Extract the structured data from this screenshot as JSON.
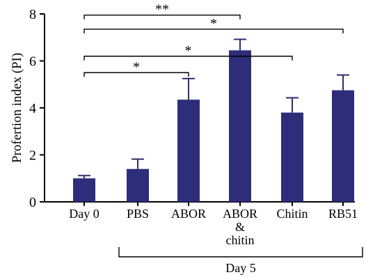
{
  "chart_data": {
    "type": "bar",
    "ylabel": "Profertion index (PI)",
    "ylim": [
      0,
      8
    ],
    "yticks": [
      0,
      2,
      4,
      6,
      8
    ],
    "bar_color": "#2e2d7a",
    "categories": [
      {
        "lines": [
          "Day 0"
        ]
      },
      {
        "lines": [
          "PBS"
        ]
      },
      {
        "lines": [
          "ABOR"
        ]
      },
      {
        "lines": [
          "ABOR",
          "&",
          "chitin"
        ]
      },
      {
        "lines": [
          "Chitin"
        ]
      },
      {
        "lines": [
          "RB51"
        ]
      }
    ],
    "values": [
      1.0,
      1.4,
      4.35,
      6.45,
      3.8,
      4.75
    ],
    "errors": [
      0.12,
      0.42,
      0.9,
      0.47,
      0.63,
      0.65
    ],
    "significance": [
      {
        "from": 0,
        "to": 2,
        "label": "*",
        "y": 5.5
      },
      {
        "from": 0,
        "to": 4,
        "label": "*",
        "y": 6.2
      },
      {
        "from": 0,
        "to": 5,
        "label": "*",
        "y": 7.35
      },
      {
        "from": 0,
        "to": 3,
        "label": "**",
        "y": 7.95
      }
    ],
    "group": {
      "label": "Day 5",
      "from": 1,
      "to": 5
    }
  }
}
